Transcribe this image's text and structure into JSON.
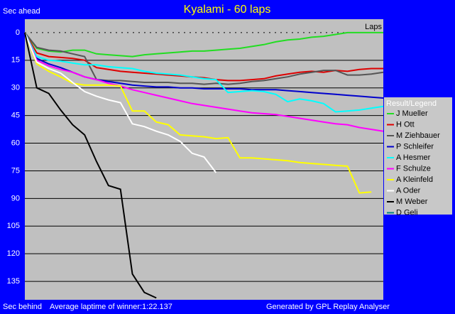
{
  "chart_data": {
    "type": "line",
    "title": "Kyalami - 60 laps",
    "y_label_top": "Sec ahead",
    "y_label_bottom": "Sec behind",
    "x_label": "Laps",
    "footer_left": "Average laptime of winner:1:22.137",
    "footer_right": "Generated by GPL Replay Analyser",
    "legend_title": "Result/Legend",
    "legend": "right",
    "grid": true,
    "y_inverted": true,
    "xlim": [
      0,
      60
    ],
    "ylim": [
      -7.3,
      145
    ],
    "yticks": [
      0,
      15,
      30,
      45,
      60,
      75,
      90,
      105,
      120,
      135
    ],
    "x": [
      0,
      2,
      4,
      6,
      8,
      10,
      12,
      14,
      16,
      18,
      20,
      22,
      24,
      26,
      28,
      30,
      32,
      34,
      36,
      38,
      40,
      42,
      44,
      46,
      48,
      50,
      52,
      54,
      56,
      58,
      60
    ],
    "series": [
      {
        "name": "J Mueller",
        "color": "#22dd22",
        "values": [
          0,
          8.5,
          10,
          10.5,
          9.5,
          9.5,
          11.5,
          12,
          12.5,
          13,
          12,
          11.5,
          11,
          10.5,
          10,
          10,
          9.5,
          9,
          8.5,
          7.5,
          6.5,
          5,
          4,
          3.5,
          2.5,
          2,
          1,
          0,
          0,
          0,
          0
        ]
      },
      {
        "name": "H Ott",
        "color": "#dd0000",
        "values": [
          0,
          11,
          13,
          13.5,
          14,
          15,
          19,
          20,
          21,
          21.5,
          22,
          22.5,
          23,
          23.5,
          24,
          24.5,
          25.5,
          26,
          26,
          25.5,
          25,
          23.5,
          22.5,
          21.5,
          21,
          21.5,
          20.5,
          21,
          20,
          19.5,
          19.5
        ]
      },
      {
        "name": "M Ziehbauer",
        "color": "#555555",
        "values": [
          0,
          8,
          9.5,
          10,
          11.5,
          13,
          25.5,
          26,
          26,
          26.5,
          27,
          27,
          27,
          27.5,
          27.5,
          28,
          27.5,
          28,
          27.5,
          26.5,
          26,
          25,
          24,
          22.5,
          21.5,
          20.5,
          20.5,
          23,
          23,
          22.5,
          21.5
        ]
      },
      {
        "name": "P Schleifer",
        "color": "#0000cc",
        "values": [
          0,
          14,
          17,
          19,
          21.5,
          24,
          25.5,
          26.5,
          27.5,
          28.5,
          29,
          29.5,
          29.5,
          30,
          30,
          30.5,
          30.5,
          30.5,
          30.5,
          31,
          31,
          31,
          31.5,
          32,
          32.5,
          33,
          33.5,
          34,
          34.5,
          35,
          35.5
        ]
      },
      {
        "name": "A Hesmer",
        "color": "#00ffff",
        "values": [
          0,
          13,
          15,
          15.5,
          16.5,
          17.5,
          17.5,
          18.5,
          19,
          19.5,
          21,
          22,
          22.5,
          23,
          24,
          25,
          25.5,
          32.5,
          32,
          31.5,
          32,
          33.5,
          37.5,
          36,
          37,
          38.5,
          43,
          42.5,
          42,
          41,
          40
        ]
      },
      {
        "name": "F Schulze",
        "color": "#ff00ff",
        "values": [
          0,
          15,
          18,
          20,
          21.5,
          24,
          25.5,
          27.5,
          29,
          31,
          32.5,
          34,
          35.5,
          37,
          38.5,
          39.5,
          40.5,
          41.5,
          42.5,
          43.5,
          44,
          44.5,
          45.5,
          46.5,
          47.5,
          48.5,
          49.5,
          50,
          51.5,
          52.5,
          53.5
        ]
      },
      {
        "name": "A Kleinfeld",
        "color": "#ffff00",
        "values": [
          0,
          17,
          21,
          24,
          27.5,
          28.5,
          28.5,
          28.5,
          29,
          42.5,
          42.5,
          48.5,
          50,
          55.5,
          56,
          56.5,
          57.5,
          57,
          68,
          68,
          68.5,
          69,
          69.5,
          70.5,
          71,
          71.5,
          72,
          72.5,
          87,
          86.5,
          null
        ]
      },
      {
        "name": "A Oder",
        "color": "#ffffff",
        "values": [
          0,
          16,
          19.5,
          22,
          27,
          32,
          34.5,
          36.5,
          38,
          49.5,
          51,
          53.5,
          55.5,
          59,
          65.5,
          67.5,
          76,
          null,
          null,
          null,
          null,
          null,
          null,
          null,
          null,
          null,
          null,
          null,
          null,
          null,
          null
        ]
      },
      {
        "name": "M Weber",
        "color": "#000000",
        "values": [
          0,
          30,
          33,
          42,
          50,
          55.5,
          70,
          83,
          85,
          131,
          141,
          144,
          null,
          null,
          null,
          null,
          null,
          null,
          null,
          null,
          null,
          null,
          null,
          null,
          null,
          null,
          null,
          null,
          null,
          null,
          null
        ]
      },
      {
        "name": "D Geli",
        "color": "#008080",
        "values": [
          null,
          null,
          null,
          null,
          null,
          null,
          null,
          null,
          null,
          null,
          null,
          null,
          null,
          null,
          null,
          null,
          null,
          null,
          null,
          null,
          null,
          null,
          null,
          null,
          null,
          null,
          null,
          null,
          null,
          null,
          null
        ]
      }
    ]
  }
}
